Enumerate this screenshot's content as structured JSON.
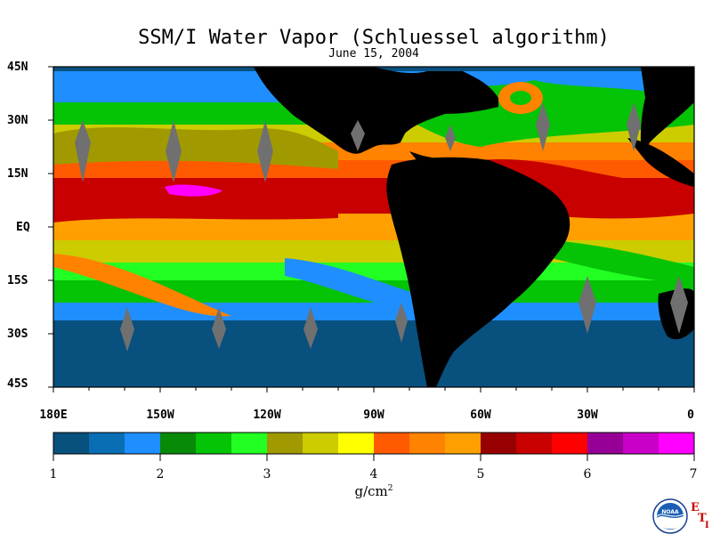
{
  "title": "SSM/I Water Vapor (Schluessel algorithm)",
  "date": "June 15, 2004",
  "lat_labels": [
    "45N",
    "30N",
    "15N",
    "EQ",
    "15S",
    "30S",
    "45S"
  ],
  "lon_labels": [
    "180E",
    "150W",
    "120W",
    "90W",
    "60W",
    "30W",
    "0"
  ],
  "colorbar": {
    "ticks": [
      "1",
      "2",
      "3",
      "4",
      "5",
      "6",
      "7"
    ],
    "unit_main": "g/cm",
    "unit_sup": "2",
    "colors": [
      "#08507e",
      "#0a6eb4",
      "#1f8fff",
      "#078a07",
      "#05c305",
      "#22ff22",
      "#a09a00",
      "#cccc00",
      "#ffff00",
      "#ff5a00",
      "#ff8200",
      "#ffa000",
      "#960000",
      "#c80000",
      "#ff0000",
      "#960096",
      "#c800c8",
      "#ff00ff"
    ]
  },
  "colors": {
    "land": "#000000",
    "missing_swath": "#707070",
    "background": "#ffffff"
  },
  "logo": {
    "agency": "NOAA",
    "letters": [
      "E",
      "T",
      "I"
    ]
  }
}
